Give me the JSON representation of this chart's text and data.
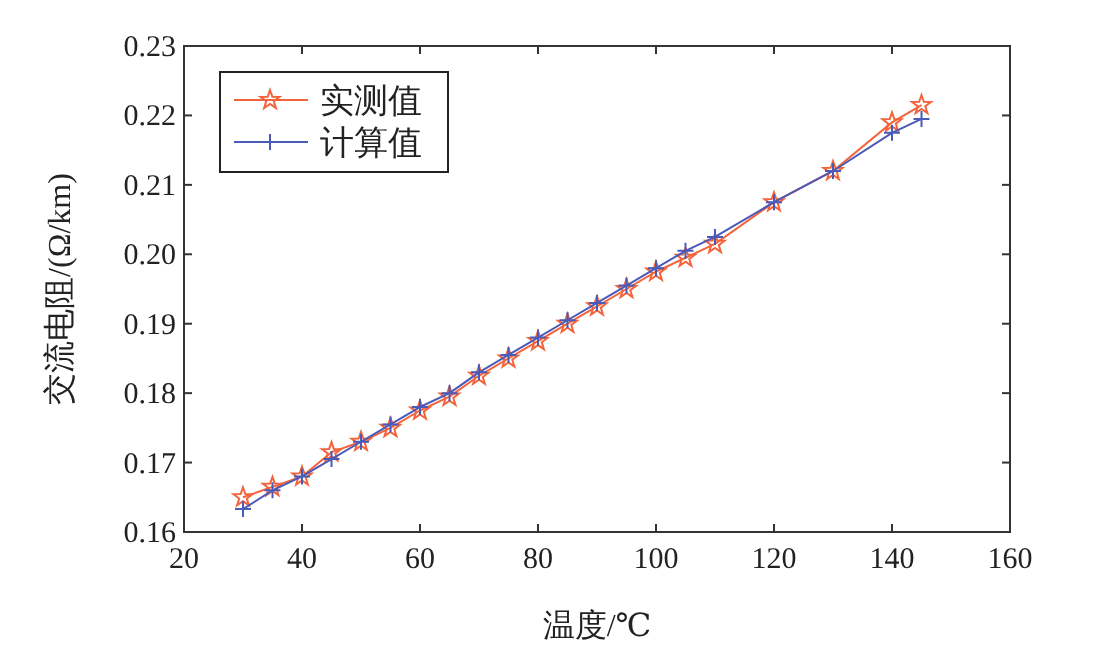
{
  "chart_data": {
    "type": "line",
    "xlabel": "温度/℃",
    "ylabel": "交流电阻/(Ω/km)",
    "x": [
      30,
      35,
      40,
      45,
      50,
      55,
      60,
      65,
      70,
      75,
      80,
      85,
      90,
      95,
      100,
      105,
      110,
      120,
      130,
      140,
      145
    ],
    "series": [
      {
        "name": "实测值",
        "color": "#f4643c",
        "marker": "star",
        "values": [
          0.165,
          0.1665,
          0.168,
          0.1715,
          0.173,
          0.175,
          0.1775,
          0.1795,
          0.1825,
          0.185,
          0.1875,
          0.19,
          0.1925,
          0.195,
          0.1975,
          0.1995,
          0.2015,
          0.2075,
          0.212,
          0.219,
          0.2215
        ]
      },
      {
        "name": "计算值",
        "color": "#4a5ab8",
        "marker": "cross",
        "values": [
          0.1633,
          0.166,
          0.168,
          0.1705,
          0.173,
          0.1755,
          0.178,
          0.18,
          0.183,
          0.1855,
          0.188,
          0.1905,
          0.193,
          0.1955,
          0.198,
          0.2005,
          0.2025,
          0.2075,
          0.212,
          0.2175,
          0.2195
        ]
      }
    ],
    "xlim": [
      20,
      160
    ],
    "xticks": [
      20,
      40,
      60,
      80,
      100,
      120,
      140,
      160
    ],
    "ylim": [
      0.16,
      0.23
    ],
    "yticks": [
      {
        "value": 0.16,
        "label": "0.16"
      },
      {
        "value": 0.17,
        "label": "0.17"
      },
      {
        "value": 0.18,
        "label": "0.18"
      },
      {
        "value": 0.19,
        "label": "0.19"
      },
      {
        "value": 0.2,
        "label": "0.20"
      },
      {
        "value": 0.21,
        "label": "0.21"
      },
      {
        "value": 0.22,
        "label": "0.22"
      },
      {
        "value": 0.23,
        "label": "0.23"
      }
    ],
    "legend": "top left",
    "grid": false,
    "line_style": "solid"
  }
}
